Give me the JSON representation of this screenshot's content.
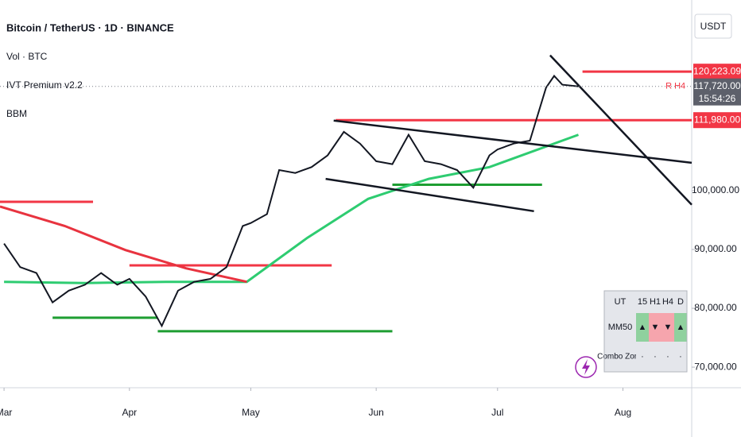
{
  "header": {
    "title": "Bitcoin / TetherUS · 1D · BINANCE",
    "indicators": [
      "Vol · BTC",
      "IVT Premium v2.2",
      "BBM"
    ],
    "currency": "USDT"
  },
  "chart_data": {
    "type": "line",
    "color": "#131722",
    "x": [
      0,
      4,
      8,
      12,
      16,
      20,
      24,
      28,
      31,
      35,
      39,
      43,
      47,
      51,
      55,
      59,
      61,
      65,
      68,
      72,
      76,
      80,
      84,
      88,
      92,
      96,
      100,
      104,
      108,
      112,
      116,
      120,
      122,
      126,
      130,
      134,
      136,
      138,
      142
    ],
    "values": [
      91000,
      87000,
      86000,
      81000,
      83000,
      84000,
      86000,
      84000,
      85000,
      82000,
      77000,
      83000,
      84500,
      85000,
      87000,
      94000,
      94500,
      96000,
      103500,
      103000,
      104000,
      106000,
      110000,
      108000,
      105000,
      104500,
      109500,
      105000,
      104500,
      103500,
      100500,
      106000,
      107000,
      108000,
      108500,
      117500,
      119500,
      118000,
      117720
    ],
    "xlim": [
      -1,
      170
    ],
    "ylim": [
      66500,
      132400
    ],
    "xticks": [
      {
        "value": 0,
        "label": "Mar"
      },
      {
        "value": 31,
        "label": "Apr"
      },
      {
        "value": 61,
        "label": "May"
      },
      {
        "value": 92,
        "label": "Jun"
      },
      {
        "value": 122,
        "label": "Jul"
      },
      {
        "value": 153,
        "label": "Aug"
      }
    ],
    "yticks": [
      {
        "value": 70000,
        "label": "70,000.00"
      },
      {
        "value": 80000,
        "label": "80,000.00"
      },
      {
        "value": 90000,
        "label": "90,000.00"
      },
      {
        "value": 100000,
        "label": "100,000.00"
      }
    ],
    "overlays": [
      {
        "color": "#2ecc71",
        "x": [
          0,
          20,
          40,
          60,
          75,
          90,
          105,
          120,
          142
        ],
        "values": [
          84500,
          84300,
          84500,
          84500,
          92000,
          98600,
          102000,
          104000,
          109500
        ]
      },
      {
        "color": "#e8333f",
        "x": [
          -1,
          15,
          30,
          45,
          60
        ],
        "values": [
          97300,
          94000,
          89900,
          86800,
          84500
        ]
      }
    ],
    "hlines": [
      {
        "value": 98100,
        "x": [
          -1,
          22
        ],
        "color": "#f23645"
      },
      {
        "value": 87300,
        "x": [
          31,
          81
        ],
        "color": "#f23645"
      },
      {
        "value": 111980,
        "x": [
          82,
          170
        ],
        "color": "#f23645"
      },
      {
        "value": 120223.09,
        "x": [
          143,
          170
        ],
        "color": "#f23645"
      },
      {
        "value": 78400,
        "x": [
          12,
          38
        ],
        "color": "#1e9e32"
      },
      {
        "value": 76100,
        "x": [
          38,
          96
        ],
        "color": "#1e9e32"
      },
      {
        "value": 101000,
        "x": [
          96,
          133
        ],
        "color": "#1e9e32"
      }
    ],
    "trendlines": [
      {
        "x": [
          81.5,
          170
        ],
        "values": [
          111900,
          104730
        ]
      },
      {
        "x": [
          79.5,
          131
        ],
        "values": [
          102000,
          96500
        ]
      },
      {
        "x": [
          135,
          170
        ],
        "values": [
          123000,
          97600
        ]
      }
    ],
    "price_labels": [
      {
        "value": 120223.09,
        "label": "120,223.09",
        "color": "#f23645"
      },
      {
        "value": 117720,
        "label": "117,720.00",
        "color": "#5d606b",
        "countdown": "15:54:26",
        "line_style": "dotted"
      },
      {
        "value": 111980,
        "label": "111,980.00",
        "color": "#f23645"
      }
    ],
    "annotations": [
      {
        "text": "R H4",
        "x": 166,
        "y": 117720,
        "color": "#f23645"
      }
    ]
  },
  "table": {
    "rows": [
      [
        "UT",
        "15",
        "H1",
        "H4",
        "D"
      ],
      [
        "MM50",
        "▲",
        "▼",
        "▼",
        "▲"
      ],
      [
        "Combo Zone",
        "·",
        "·",
        "·",
        "·"
      ]
    ],
    "cell_colors": [
      [
        "#e4e6eb",
        "#e4e6eb",
        "#e4e6eb",
        "#e4e6eb",
        "#e4e6eb"
      ],
      [
        "#e4e6eb",
        "#8fd19e",
        "#f6a5ad",
        "#f6a5ad",
        "#8fd19e"
      ],
      [
        "#e4e6eb",
        "#e4e6eb",
        "#e4e6eb",
        "#e4e6eb",
        "#e4e6eb"
      ]
    ]
  }
}
